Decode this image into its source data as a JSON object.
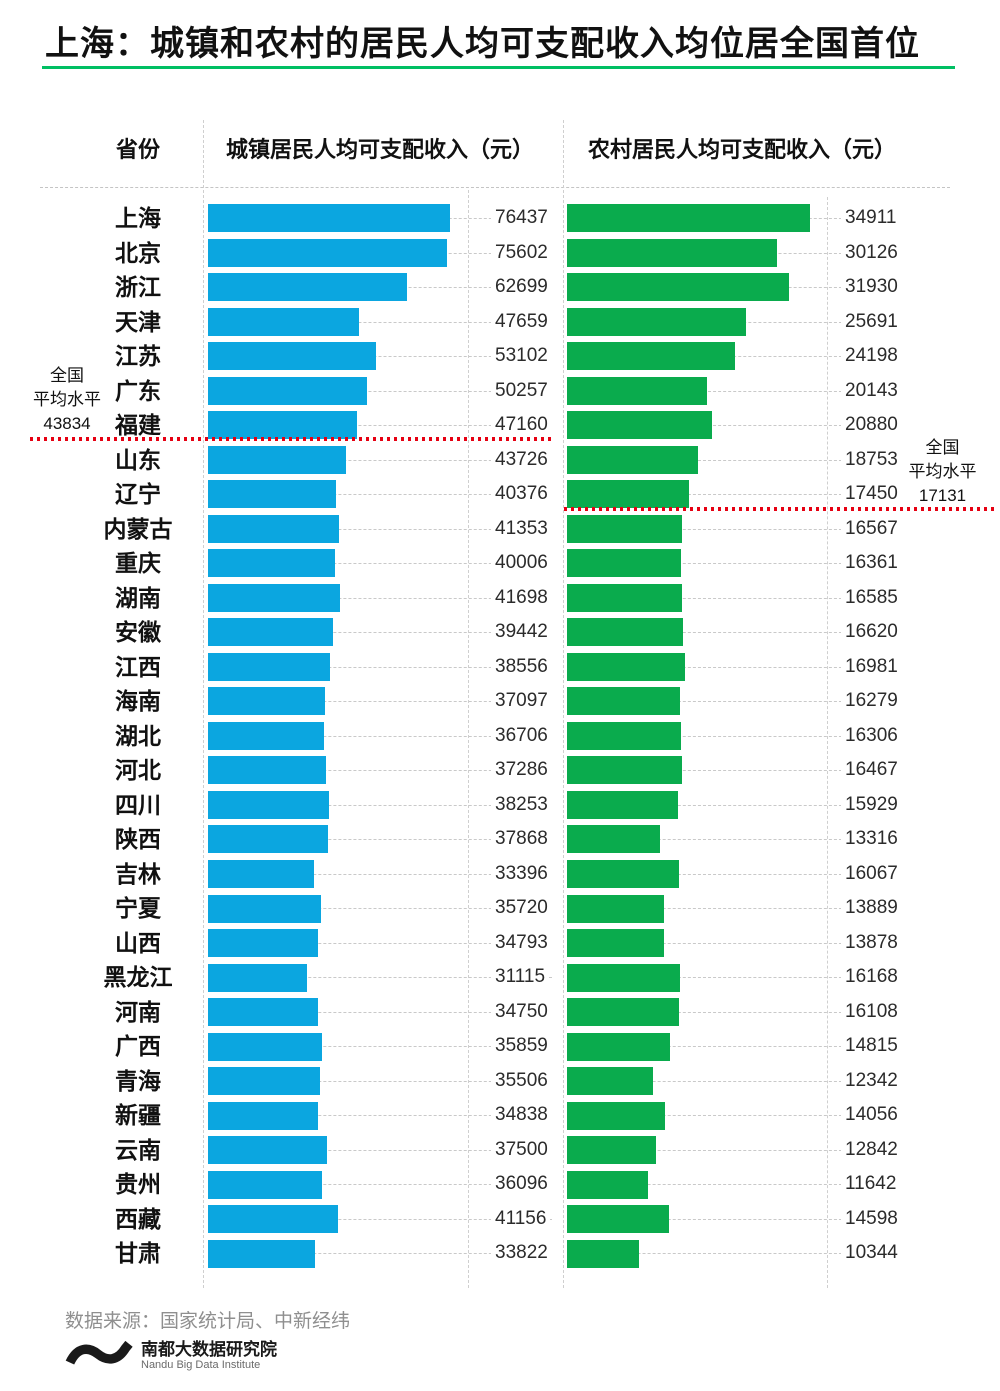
{
  "title": "上海：城镇和农村的居民人均可支配收入均位居全国首位",
  "table_headers": {
    "province": "省份",
    "urban": "城镇居民人均可支配收入（元）",
    "rural": "农村居民人均可支配收入（元）"
  },
  "chart_data": {
    "type": "bar",
    "orientation": "horizontal",
    "title": "上海：城镇和农村的居民人均可支配收入均位居全国首位",
    "categories": [
      "上海",
      "北京",
      "浙江",
      "天津",
      "江苏",
      "广东",
      "福建",
      "山东",
      "辽宁",
      "内蒙古",
      "重庆",
      "湖南",
      "安徽",
      "江西",
      "海南",
      "湖北",
      "河北",
      "四川",
      "陕西",
      "吉林",
      "宁夏",
      "山西",
      "黑龙江",
      "河南",
      "广西",
      "青海",
      "新疆",
      "云南",
      "贵州",
      "西藏",
      "甘肃"
    ],
    "series": [
      {
        "name": "城镇居民人均可支配收入（元）",
        "values": [
          76437,
          75602,
          62699,
          47659,
          53102,
          50257,
          47160,
          43726,
          40376,
          41353,
          40006,
          41698,
          39442,
          38556,
          37097,
          36706,
          37286,
          38253,
          37868,
          33396,
          35720,
          34793,
          31115,
          34750,
          35859,
          35506,
          34838,
          37500,
          36096,
          41156,
          33822
        ]
      },
      {
        "name": "农村居民人均可支配收入（元）",
        "values": [
          34911,
          30126,
          31930,
          25691,
          24198,
          20143,
          20880,
          18753,
          17450,
          16567,
          16361,
          16585,
          16620,
          16981,
          16279,
          16306,
          16467,
          15929,
          13316,
          16067,
          13889,
          13878,
          16168,
          16108,
          14815,
          12342,
          14056,
          12842,
          11642,
          14598,
          10344
        ]
      }
    ],
    "annotations": {
      "urban_average": {
        "lines": [
          "全国",
          "平均水平",
          "43834"
        ],
        "value": 43834,
        "marker": "red-dotted-line"
      },
      "rural_average": {
        "lines": [
          "全国",
          "平均水平",
          "17131"
        ],
        "value": 17131,
        "marker": "red-dotted-line"
      }
    },
    "bar_scale_max": {
      "urban": 76437,
      "rural": 34911
    },
    "grid": "dashed-column-separators",
    "legend_position": "none"
  },
  "footer": {
    "source": "数据来源：国家统计局、中新经纬",
    "org_cn": "南都大数据研究院",
    "org_en": "Nandu Big Data Institute"
  },
  "colors": {
    "urban_bar": "#0ba6e0",
    "rural_bar": "#0aab4d",
    "title_underline": "#00bf63",
    "average_line": "#e60012",
    "leader_dash": "#c9c9c9",
    "source_text": "#8f8f8f"
  }
}
